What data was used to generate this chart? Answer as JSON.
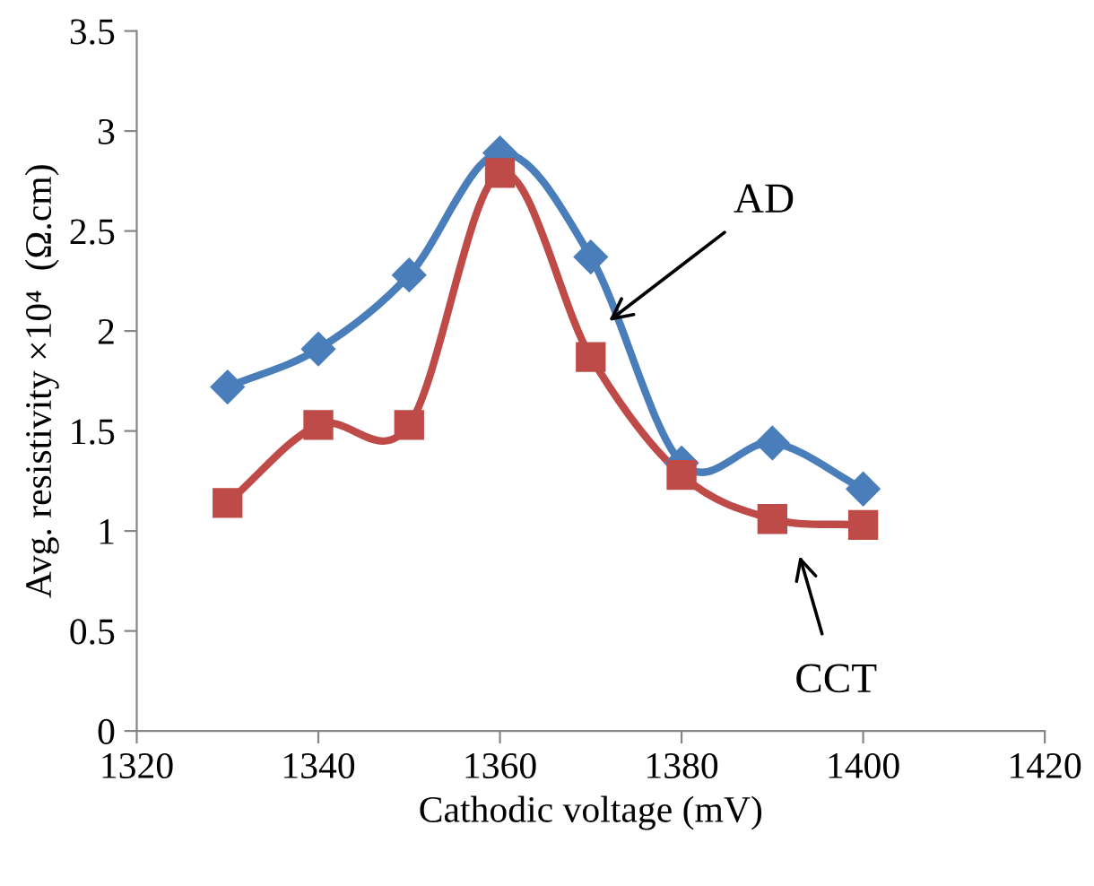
{
  "chart_data": {
    "type": "line",
    "xlabel": "Cathodic voltage (mV)",
    "ylabel": "Avg. resistivity ×10⁴  (Ω.cm)",
    "x": [
      1330,
      1340,
      1350,
      1360,
      1370,
      1380,
      1390,
      1400
    ],
    "series": [
      {
        "color": "#4a7ebb",
        "marker": "diamond",
        "values": [
          1.72,
          1.91,
          2.28,
          2.89,
          2.37,
          1.34,
          1.44,
          1.21
        ]
      },
      {
        "color": "#be4b48",
        "marker": "square",
        "values": [
          1.14,
          1.53,
          1.53,
          2.79,
          1.87,
          1.28,
          1.06,
          1.03
        ]
      }
    ],
    "annotations": [
      {
        "text": "AD",
        "x": 1372,
        "y": 2.05
      },
      "CCT"
    ],
    "xlim": [
      1320,
      1420
    ],
    "xticks": [
      1320,
      1340,
      1360,
      1380,
      1400,
      1420
    ],
    "ylim": [
      0,
      3.5
    ],
    "yticks": [
      0,
      0.5,
      1,
      1.5,
      2,
      2.5,
      3,
      3.5
    ],
    "grid": false,
    "legend": false,
    "line_style": "solid"
  }
}
